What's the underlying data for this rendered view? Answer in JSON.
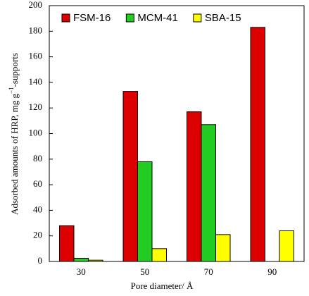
{
  "chart_data": {
    "type": "bar",
    "categories": [
      "30",
      "50",
      "70",
      "90"
    ],
    "series": [
      {
        "name": "FSM-16",
        "color": "#dd0000",
        "values": [
          28,
          133,
          117,
          183
        ]
      },
      {
        "name": "MCM-41",
        "color": "#22cc22",
        "values": [
          2.5,
          78,
          107,
          0
        ]
      },
      {
        "name": "SBA-15",
        "color": "#ffff00",
        "values": [
          1,
          10,
          21,
          24
        ]
      }
    ],
    "ylabel": [
      "Adsorbed amounts of HRP, mg g",
      "−1",
      "-supports"
    ],
    "xlabel": "Pore diameter/ Å",
    "ylim": [
      0,
      200
    ],
    "yticks": [
      0,
      20,
      40,
      60,
      80,
      100,
      120,
      140,
      160,
      180,
      200
    ],
    "legend": "top"
  }
}
